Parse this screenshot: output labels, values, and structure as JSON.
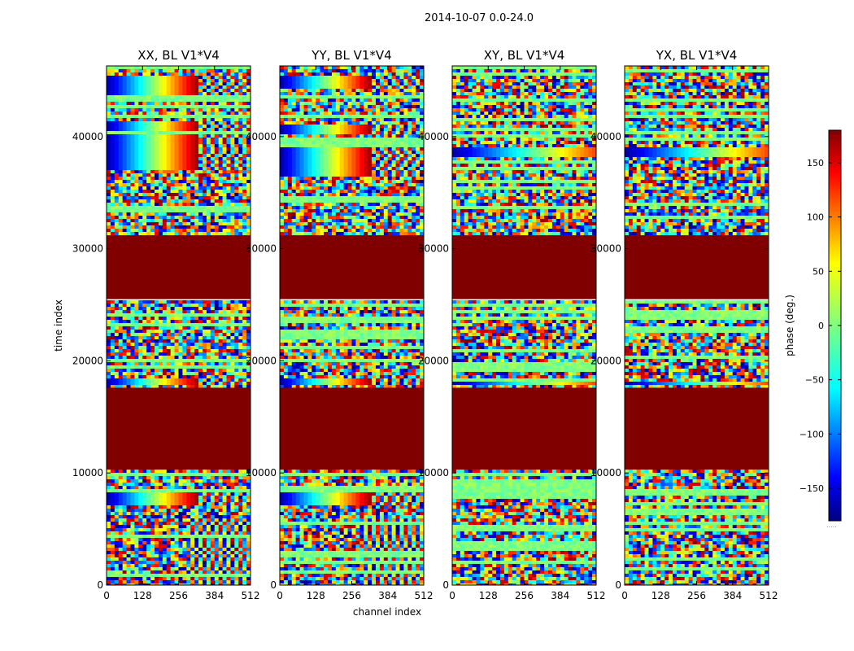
{
  "figure": {
    "suptitle": "2014-10-07 0.0-24.0"
  },
  "chart_data": {
    "type": "heatmap",
    "title": "2014-10-07 0.0-24.0",
    "xlabel": "channel index",
    "ylabel": "time index",
    "colorbar_label": "phase (deg.)",
    "colormap": "jet",
    "xlim": [
      0,
      512
    ],
    "ylim": [
      0,
      46300
    ],
    "clim": [
      -180,
      180
    ],
    "xticks": [
      0,
      128,
      256,
      384,
      512
    ],
    "xtick_labels": [
      "0",
      "128",
      "256",
      "384",
      "512"
    ],
    "yticks": [
      0,
      10000,
      20000,
      30000,
      40000
    ],
    "ytick_labels": [
      "0",
      "10000",
      "20000",
      "30000",
      "40000"
    ],
    "colorbar_ticks": [
      -150,
      -100,
      -50,
      0,
      50,
      100,
      150
    ],
    "colorbar_tick_labels": [
      "−150",
      "−100",
      "−50",
      "0",
      "50",
      "100",
      "150"
    ],
    "colorbar_footnote": ".....",
    "flagged_time_ranges": [
      [
        10300,
        17600
      ],
      [
        25500,
        31200
      ]
    ],
    "flagged_value": 180,
    "panels": [
      {
        "title": "XX, BL V1*V4",
        "polarization": "XX",
        "coherent_bands": [
          [
            43800,
            45300
          ],
          [
            37000,
            40300
          ],
          [
            17800,
            18500
          ],
          [
            7200,
            8200
          ],
          [
            40600,
            41300
          ]
        ]
      },
      {
        "title": "YY, BL V1*V4",
        "polarization": "YY",
        "coherent_bands": [
          [
            44200,
            45300
          ],
          [
            36500,
            39000
          ],
          [
            17800,
            18500
          ],
          [
            7200,
            8200
          ],
          [
            40300,
            41200
          ]
        ]
      },
      {
        "title": "XY, BL V1*V4",
        "polarization": "XY",
        "coherent_bands": [
          [
            38300,
            38900
          ],
          [
            17800,
            18200
          ]
        ]
      },
      {
        "title": "YX, BL V1*V4",
        "polarization": "YX",
        "coherent_bands": [
          [
            38300,
            38900
          ],
          [
            17800,
            18200
          ]
        ]
      }
    ]
  }
}
